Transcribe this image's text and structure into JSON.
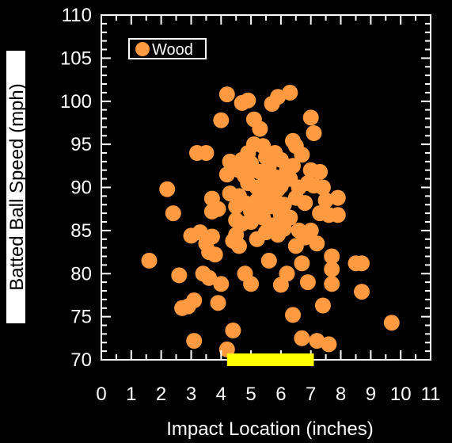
{
  "chart_data": {
    "type": "scatter",
    "xlabel": "Impact Location (inches)",
    "ylabel": "Batted Ball Speed (mph)",
    "xlim": [
      0,
      11
    ],
    "ylim": [
      70,
      110
    ],
    "xticks": [
      0,
      1,
      2,
      3,
      4,
      5,
      6,
      7,
      8,
      9,
      10,
      11
    ],
    "yticks": [
      70,
      75,
      80,
      85,
      90,
      95,
      100,
      105,
      110
    ],
    "xtick_labels": [
      "0",
      "1",
      "2",
      "3",
      "4",
      "5",
      "6",
      "7",
      "8",
      "9",
      "10",
      "11"
    ],
    "ytick_labels": [
      "70",
      "75",
      "80",
      "85",
      "90",
      "95",
      "100",
      "105",
      "110"
    ],
    "legend_position": "top-left",
    "grid": false,
    "background": "#000000",
    "axis_color": "#ffffff",
    "sweet_spot_bar": {
      "x": [
        4.2,
        7.1
      ],
      "y": 70,
      "color": "#ffff00"
    },
    "series": [
      {
        "name": "Wood",
        "color": "#ff9a40",
        "points": [
          [
            1.6,
            81.5
          ],
          [
            2.2,
            89.8
          ],
          [
            2.4,
            87.0
          ],
          [
            2.6,
            79.8
          ],
          [
            2.7,
            76.0
          ],
          [
            2.9,
            76.2
          ],
          [
            3.0,
            84.4
          ],
          [
            3.1,
            72.2
          ],
          [
            3.1,
            76.9
          ],
          [
            3.2,
            94.0
          ],
          [
            3.3,
            84.8
          ],
          [
            3.4,
            80.0
          ],
          [
            3.5,
            94.0
          ],
          [
            3.5,
            83.5
          ],
          [
            3.6,
            79.5
          ],
          [
            3.6,
            82.5
          ],
          [
            3.7,
            84.3
          ],
          [
            3.7,
            88.7
          ],
          [
            3.7,
            87.2
          ],
          [
            3.8,
            82.2
          ],
          [
            3.9,
            76.6
          ],
          [
            3.9,
            87.5
          ],
          [
            4.0,
            78.8
          ],
          [
            4.0,
            97.8
          ],
          [
            4.2,
            100.8
          ],
          [
            4.2,
            91.5
          ],
          [
            4.2,
            71.2
          ],
          [
            4.3,
            89.3
          ],
          [
            4.3,
            93.0
          ],
          [
            4.4,
            83.8
          ],
          [
            4.4,
            73.4
          ],
          [
            4.5,
            87.8
          ],
          [
            4.5,
            86.2
          ],
          [
            4.5,
            84.5
          ],
          [
            4.6,
            92.0
          ],
          [
            4.6,
            89.0
          ],
          [
            4.6,
            83.2
          ],
          [
            4.7,
            99.8
          ],
          [
            4.7,
            93.2
          ],
          [
            4.7,
            85.8
          ],
          [
            4.8,
            91.3
          ],
          [
            4.8,
            88.2
          ],
          [
            4.8,
            80.0
          ],
          [
            4.9,
            100.1
          ],
          [
            4.9,
            94.0
          ],
          [
            4.9,
            90.5
          ],
          [
            5.0,
            92.8
          ],
          [
            5.0,
            87.2
          ],
          [
            5.0,
            86.0
          ],
          [
            5.0,
            78.8
          ],
          [
            5.1,
            97.9
          ],
          [
            5.1,
            95.0
          ],
          [
            5.1,
            92.0
          ],
          [
            5.2,
            90.0
          ],
          [
            5.2,
            88.5
          ],
          [
            5.2,
            84.0
          ],
          [
            5.3,
            96.8
          ],
          [
            5.3,
            91.8
          ],
          [
            5.3,
            89.5
          ],
          [
            5.4,
            94.8
          ],
          [
            5.4,
            88.0
          ],
          [
            5.4,
            86.5
          ],
          [
            5.5,
            93.5
          ],
          [
            5.5,
            90.8
          ],
          [
            5.5,
            84.8
          ],
          [
            5.6,
            92.5
          ],
          [
            5.6,
            89.2
          ],
          [
            5.6,
            81.5
          ],
          [
            5.7,
            99.7
          ],
          [
            5.7,
            87.8
          ],
          [
            5.7,
            85.6
          ],
          [
            5.8,
            94.0
          ],
          [
            5.8,
            91.2
          ],
          [
            5.8,
            88.6
          ],
          [
            5.9,
            100.5
          ],
          [
            5.9,
            89.8
          ],
          [
            5.9,
            84.5
          ],
          [
            6.0,
            93.2
          ],
          [
            6.0,
            90.2
          ],
          [
            6.0,
            86.8
          ],
          [
            6.0,
            78.7
          ],
          [
            6.1,
            85.2
          ],
          [
            6.1,
            88.0
          ],
          [
            6.2,
            92.0
          ],
          [
            6.2,
            80.0
          ],
          [
            6.3,
            101.0
          ],
          [
            6.3,
            91.0
          ],
          [
            6.3,
            86.5
          ],
          [
            6.4,
            95.4
          ],
          [
            6.4,
            92.5
          ],
          [
            6.4,
            75.2
          ],
          [
            6.5,
            94.8
          ],
          [
            6.5,
            88.8
          ],
          [
            6.5,
            83.2
          ],
          [
            6.6,
            90.0
          ],
          [
            6.6,
            85.0
          ],
          [
            6.7,
            93.8
          ],
          [
            6.7,
            81.2
          ],
          [
            6.7,
            72.5
          ],
          [
            6.8,
            88.2
          ],
          [
            6.8,
            84.2
          ],
          [
            6.9,
            79.0
          ],
          [
            6.9,
            90.5
          ],
          [
            7.0,
            98.1
          ],
          [
            7.0,
            92.0
          ],
          [
            7.0,
            85.0
          ],
          [
            7.1,
            96.3
          ],
          [
            7.1,
            90.2
          ],
          [
            7.2,
            83.5
          ],
          [
            7.2,
            72.2
          ],
          [
            7.3,
            91.8
          ],
          [
            7.3,
            87.0
          ],
          [
            7.4,
            90.0
          ],
          [
            7.4,
            76.3
          ],
          [
            7.5,
            88.5
          ],
          [
            7.6,
            86.8
          ],
          [
            7.6,
            71.8
          ],
          [
            7.7,
            82.0
          ],
          [
            7.7,
            80.5
          ],
          [
            7.7,
            78.8
          ],
          [
            7.9,
            88.8
          ],
          [
            7.9,
            86.8
          ],
          [
            8.5,
            81.2
          ],
          [
            8.7,
            81.2
          ],
          [
            8.7,
            77.9
          ],
          [
            9.7,
            74.3
          ]
        ]
      }
    ]
  }
}
